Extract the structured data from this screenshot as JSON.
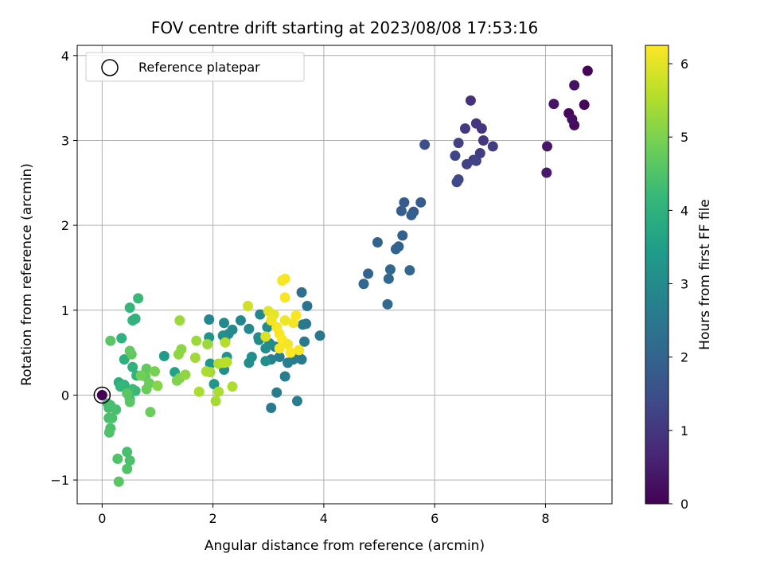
{
  "chart_data": {
    "type": "scatter",
    "title": "FOV centre drift starting at 2023/08/08 17:53:16",
    "xlabel": "Angular distance from reference (arcmin)",
    "ylabel": "Rotation from reference (arcmin)",
    "xlim": [
      -0.45,
      9.2
    ],
    "ylim": [
      -1.28,
      4.12
    ],
    "xticks": [
      0,
      2,
      4,
      6,
      8
    ],
    "yticks": [
      -1,
      0,
      1,
      2,
      3,
      4
    ],
    "xtick_labels": [
      "0",
      "2",
      "4",
      "6",
      "8"
    ],
    "ytick_labels": [
      "−1",
      "0",
      "1",
      "2",
      "3",
      "4"
    ],
    "grid": true,
    "legend": {
      "label": "Reference platepar",
      "marker": "hollow circle",
      "position": "top-left",
      "point": [
        0,
        0
      ]
    },
    "colorbar": {
      "label": "Hours from first FF file",
      "range": [
        0,
        6.25
      ],
      "ticks": [
        0,
        1,
        2,
        3,
        4,
        5,
        6
      ],
      "tick_labels": [
        "0",
        "1",
        "2",
        "3",
        "4",
        "5",
        "6"
      ],
      "colormap": "viridis"
    },
    "colormap_stops": [
      "#440154",
      "#482878",
      "#3e4a89",
      "#31688e",
      "#26828e",
      "#1f9e89",
      "#35b779",
      "#6ece58",
      "#b5de2b",
      "#fde725"
    ],
    "points": [
      [
        0.0,
        0.0,
        0.0
      ],
      [
        8.76,
        3.82,
        0.05
      ],
      [
        8.52,
        3.65,
        0.3
      ],
      [
        8.7,
        3.42,
        0.1
      ],
      [
        8.42,
        3.32,
        0.15
      ],
      [
        8.52,
        3.18,
        0.2
      ],
      [
        8.48,
        3.25,
        0.25
      ],
      [
        8.15,
        3.43,
        0.35
      ],
      [
        8.03,
        2.93,
        0.4
      ],
      [
        8.02,
        2.62,
        0.45
      ],
      [
        6.65,
        3.47,
        0.9
      ],
      [
        6.75,
        3.2,
        1.0
      ],
      [
        6.55,
        3.14,
        1.05
      ],
      [
        6.85,
        3.14,
        0.95
      ],
      [
        6.88,
        3.0,
        1.0
      ],
      [
        7.05,
        2.93,
        1.1
      ],
      [
        6.82,
        2.85,
        1.1
      ],
      [
        6.7,
        2.77,
        1.15
      ],
      [
        6.58,
        2.72,
        1.2
      ],
      [
        6.75,
        2.76,
        1.25
      ],
      [
        6.43,
        2.97,
        1.2
      ],
      [
        6.37,
        2.82,
        1.3
      ],
      [
        6.43,
        2.54,
        1.35
      ],
      [
        6.4,
        2.51,
        1.4
      ],
      [
        5.82,
        2.95,
        1.5
      ],
      [
        5.45,
        2.27,
        1.75
      ],
      [
        5.75,
        2.27,
        1.8
      ],
      [
        5.4,
        2.17,
        1.85
      ],
      [
        5.62,
        2.16,
        1.8
      ],
      [
        5.58,
        2.12,
        1.9
      ],
      [
        4.97,
        1.8,
        1.95
      ],
      [
        5.42,
        1.88,
        1.9
      ],
      [
        5.35,
        1.75,
        1.95
      ],
      [
        5.3,
        1.72,
        2.0
      ],
      [
        5.2,
        1.48,
        2.05
      ],
      [
        5.55,
        1.47,
        2.05
      ],
      [
        4.8,
        1.43,
        2.0
      ],
      [
        4.72,
        1.31,
        2.05
      ],
      [
        5.17,
        1.37,
        2.05
      ],
      [
        5.15,
        1.07,
        2.15
      ],
      [
        3.6,
        1.21,
        2.3
      ],
      [
        3.7,
        1.05,
        2.4
      ],
      [
        3.68,
        0.84,
        2.45
      ],
      [
        3.62,
        0.83,
        2.5
      ],
      [
        3.93,
        0.7,
        2.5
      ],
      [
        3.65,
        0.63,
        2.55
      ],
      [
        3.55,
        0.45,
        2.6
      ],
      [
        3.6,
        0.42,
        2.55
      ],
      [
        3.45,
        0.42,
        2.6
      ],
      [
        3.35,
        0.38,
        2.65
      ],
      [
        3.2,
        0.45,
        2.7
      ],
      [
        3.05,
        0.42,
        2.75
      ],
      [
        3.12,
        0.57,
        2.8
      ],
      [
        3.3,
        0.22,
        2.6
      ],
      [
        3.15,
        0.03,
        2.6
      ],
      [
        3.05,
        -0.15,
        2.55
      ],
      [
        3.52,
        -0.07,
        2.65
      ],
      [
        1.93,
        0.89,
        2.9
      ],
      [
        2.2,
        0.85,
        2.95
      ],
      [
        2.35,
        0.77,
        2.95
      ],
      [
        2.28,
        0.72,
        3.0
      ],
      [
        2.18,
        0.7,
        3.1
      ],
      [
        2.5,
        0.88,
        2.85
      ],
      [
        2.65,
        0.78,
        2.95
      ],
      [
        2.85,
        0.95,
        2.9
      ],
      [
        3.05,
        0.87,
        2.9
      ],
      [
        2.98,
        0.8,
        3.0
      ],
      [
        3.02,
        0.61,
        3.0
      ],
      [
        2.83,
        0.65,
        3.0
      ],
      [
        2.95,
        0.55,
        3.05
      ],
      [
        2.7,
        0.45,
        3.1
      ],
      [
        2.65,
        0.38,
        3.1
      ],
      [
        2.95,
        0.4,
        3.1
      ],
      [
        2.82,
        0.68,
        3.05
      ],
      [
        2.22,
        0.63,
        3.15
      ],
      [
        2.25,
        0.45,
        3.2
      ],
      [
        2.2,
        0.3,
        3.1
      ],
      [
        1.93,
        0.68,
        3.2
      ],
      [
        1.95,
        0.37,
        3.25
      ],
      [
        2.02,
        0.13,
        3.3
      ],
      [
        1.12,
        0.46,
        3.4
      ],
      [
        1.31,
        0.27,
        3.6
      ],
      [
        0.35,
        0.67,
        4.0
      ],
      [
        0.55,
        0.88,
        4.1
      ],
      [
        0.65,
        1.14,
        4.2
      ],
      [
        0.5,
        1.03,
        4.1
      ],
      [
        0.6,
        0.9,
        4.0
      ],
      [
        0.4,
        0.42,
        3.95
      ],
      [
        0.55,
        0.33,
        4.0
      ],
      [
        0.62,
        0.23,
        4.05
      ],
      [
        0.3,
        0.15,
        3.9
      ],
      [
        0.4,
        0.12,
        4.05
      ],
      [
        0.33,
        0.1,
        4.15
      ],
      [
        0.6,
        0.05,
        4.2
      ],
      [
        0.55,
        0.07,
        4.25
      ],
      [
        0.5,
        -0.05,
        4.3
      ],
      [
        0.1,
        -0.1,
        4.3
      ],
      [
        0.12,
        -0.15,
        4.35
      ],
      [
        0.15,
        -0.12,
        4.4
      ],
      [
        0.25,
        -0.17,
        4.4
      ],
      [
        0.12,
        -0.27,
        4.4
      ],
      [
        0.18,
        -0.27,
        4.45
      ],
      [
        0.15,
        -0.39,
        4.45
      ],
      [
        0.13,
        -0.44,
        4.5
      ],
      [
        0.45,
        -0.67,
        4.4
      ],
      [
        0.5,
        -0.77,
        4.45
      ],
      [
        0.45,
        -0.87,
        4.5
      ],
      [
        0.28,
        -0.75,
        4.5
      ],
      [
        0.3,
        -1.02,
        4.6
      ],
      [
        0.5,
        -0.08,
        4.6
      ],
      [
        0.45,
        0.02,
        4.6
      ],
      [
        0.15,
        0.64,
        4.6
      ],
      [
        0.53,
        0.48,
        4.65
      ],
      [
        0.5,
        0.52,
        4.7
      ],
      [
        0.8,
        0.31,
        4.7
      ],
      [
        0.78,
        0.22,
        4.75
      ],
      [
        0.85,
        0.14,
        4.8
      ],
      [
        0.8,
        0.07,
        4.8
      ],
      [
        0.87,
        -0.2,
        4.8
      ],
      [
        0.7,
        0.23,
        4.9
      ],
      [
        0.95,
        0.28,
        4.95
      ],
      [
        1.4,
        0.2,
        5.0
      ],
      [
        1.35,
        0.17,
        5.05
      ],
      [
        1.0,
        0.11,
        5.1
      ],
      [
        1.5,
        0.24,
        5.2
      ],
      [
        1.38,
        0.48,
        5.2
      ],
      [
        1.43,
        0.54,
        5.15
      ],
      [
        1.4,
        0.88,
        5.3
      ],
      [
        1.7,
        0.64,
        5.3
      ],
      [
        1.9,
        0.6,
        5.3
      ],
      [
        1.68,
        0.44,
        5.35
      ],
      [
        1.95,
        0.27,
        5.4
      ],
      [
        1.88,
        0.28,
        5.45
      ],
      [
        1.75,
        0.04,
        5.45
      ],
      [
        2.05,
        -0.07,
        5.4
      ],
      [
        2.1,
        0.04,
        5.45
      ],
      [
        2.35,
        0.1,
        5.5
      ],
      [
        2.1,
        0.37,
        5.5
      ],
      [
        2.25,
        0.39,
        5.55
      ],
      [
        2.2,
        0.38,
        5.6
      ],
      [
        2.22,
        0.62,
        5.55
      ],
      [
        2.63,
        1.05,
        5.8
      ],
      [
        2.95,
        0.69,
        5.9
      ],
      [
        3.0,
        0.99,
        6.0
      ],
      [
        3.1,
        0.95,
        6.05
      ],
      [
        3.05,
        0.88,
        6.1
      ],
      [
        3.25,
        1.35,
        6.15
      ],
      [
        3.3,
        1.37,
        6.2
      ],
      [
        3.3,
        1.15,
        6.2
      ],
      [
        3.15,
        0.8,
        6.2
      ],
      [
        3.3,
        0.88,
        6.1
      ],
      [
        3.5,
        0.94,
        6.2
      ],
      [
        3.45,
        0.85,
        6.15
      ],
      [
        3.2,
        0.72,
        6.2
      ],
      [
        3.25,
        0.65,
        6.25
      ],
      [
        3.35,
        0.6,
        6.15
      ],
      [
        3.2,
        0.55,
        6.2
      ],
      [
        3.4,
        0.5,
        6.25
      ],
      [
        3.55,
        0.53,
        6.2
      ]
    ]
  }
}
